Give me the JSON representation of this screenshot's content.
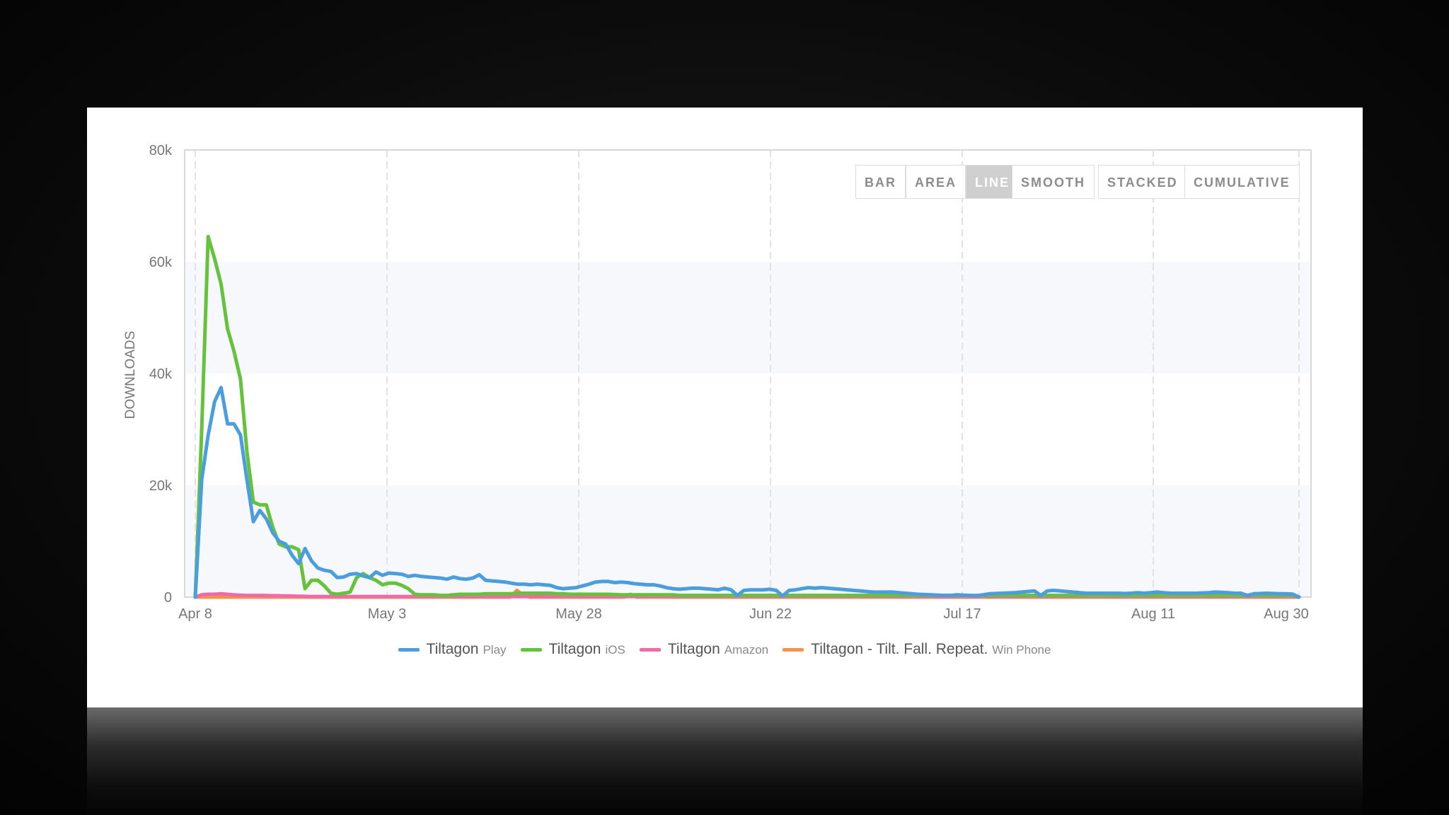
{
  "toolbar": {
    "buttons": [
      "BAR",
      "AREA",
      "LINE",
      "SMOOTH",
      "STACKED",
      "CUMULATIVE"
    ],
    "active": "LINE"
  },
  "chart_data": {
    "type": "line",
    "ylabel": "DOWNLOADS",
    "ylim": [
      0,
      80000
    ],
    "yticks": [
      "0",
      "20k",
      "40k",
      "60k",
      "80k"
    ],
    "xticks": [
      "Apr 8",
      "May 3",
      "May 28",
      "Jun 22",
      "Jul 17",
      "Aug 11",
      "Aug 30"
    ],
    "grid": "alternating horizontal bands, dashed vertical gridlines",
    "legend_position": "bottom",
    "x_start": "Apr 8",
    "x_end": "Aug 30",
    "series": [
      {
        "name": "Tiltagon",
        "platform": "Play",
        "color": "#4a9ee0",
        "values": [
          0,
          21000,
          29000,
          35000,
          37500,
          31000,
          31000,
          29000,
          21000,
          13500,
          15500,
          14000,
          11500,
          10000,
          9500,
          7500,
          6000,
          8700,
          6500,
          5200,
          4800,
          4600,
          3500,
          3600,
          4100,
          4200,
          3800,
          3500,
          4500,
          3900,
          4300,
          4200,
          4100,
          3700,
          3900,
          3700,
          3600,
          3500,
          3400,
          3200,
          3600,
          3300,
          3200,
          3400,
          4000,
          3000,
          2900,
          2800,
          2700,
          2500,
          2300,
          2300,
          2200,
          2300,
          2200,
          2100,
          1700,
          1500,
          1600,
          1700,
          2000,
          2300,
          2700,
          2800,
          2800,
          2600,
          2700,
          2600,
          2400,
          2300,
          2200,
          2200,
          2000,
          1700,
          1500,
          1400,
          1500,
          1600,
          1600,
          1500,
          1400,
          1300,
          1600,
          1300,
          300,
          1200,
          1300,
          1300,
          1300,
          1400,
          1200,
          200,
          1200,
          1300,
          1500,
          1700,
          1600,
          1700,
          1600,
          1500,
          1400,
          1300,
          1200,
          1100,
          1000,
          900,
          900,
          900,
          900,
          800,
          700,
          600,
          500,
          450,
          400,
          350,
          300,
          300,
          400,
          350,
          300,
          250,
          400,
          600,
          650,
          700,
          750,
          800,
          900,
          1000,
          1100,
          300,
          1100,
          1200,
          1100,
          1000,
          900,
          800,
          700,
          700,
          700,
          700,
          700,
          700,
          650,
          700,
          800,
          700,
          800,
          900,
          800,
          700,
          700,
          700,
          700,
          700,
          750,
          800,
          900,
          850,
          800,
          700,
          700,
          300,
          600,
          650,
          700,
          650,
          600,
          600,
          550,
          0
        ]
      },
      {
        "name": "Tiltagon",
        "platform": "iOS",
        "color": "#65c23b",
        "values": [
          0,
          30000,
          64500,
          60500,
          56000,
          48000,
          44000,
          39000,
          26000,
          17000,
          16500,
          16500,
          12500,
          9500,
          9000,
          9000,
          8500,
          1500,
          3000,
          3000,
          2000,
          700,
          500,
          700,
          900,
          3500,
          4200,
          3500,
          3000,
          2200,
          2500,
          2500,
          2100,
          1500,
          500,
          400,
          400,
          400,
          300,
          300,
          400,
          500,
          500,
          500,
          500,
          600,
          600,
          600,
          600,
          600,
          700,
          700,
          700,
          700,
          700,
          700,
          600,
          600,
          500,
          500,
          500,
          500,
          500,
          500,
          500,
          450,
          400,
          400,
          400,
          400,
          400,
          400,
          400,
          400,
          400,
          300,
          300,
          300,
          300,
          300,
          300,
          300,
          300,
          300,
          300,
          300,
          300,
          300,
          300,
          300,
          300,
          300,
          300,
          300,
          300,
          300,
          300,
          300,
          300,
          300,
          300,
          300,
          300,
          300,
          300,
          300,
          300,
          300,
          300,
          300,
          300,
          300,
          300,
          300,
          300,
          300,
          300,
          300,
          300,
          300,
          300,
          300,
          300,
          300,
          300,
          300,
          300,
          300,
          300,
          300,
          300,
          300,
          300,
          300,
          300,
          300,
          300,
          300,
          300,
          300,
          300,
          300,
          300,
          300,
          300,
          300,
          300,
          300,
          300,
          300,
          300,
          300,
          300,
          300,
          300,
          300,
          300,
          300,
          300,
          300,
          300,
          300,
          300,
          300,
          300,
          300,
          300,
          300,
          300,
          300,
          300,
          0
        ]
      },
      {
        "name": "Tiltagon",
        "platform": "Amazon",
        "color": "#f06aa8",
        "values": [
          0,
          400,
          500,
          500,
          600,
          500,
          400,
          350,
          300,
          300,
          300,
          300,
          250,
          250,
          200,
          200,
          150,
          150,
          100,
          100,
          100,
          100,
          100,
          100,
          100,
          100,
          100,
          100,
          100,
          100,
          100,
          100,
          100,
          100,
          100,
          100,
          100,
          100,
          100,
          100,
          100,
          100,
          100,
          100,
          100,
          100,
          100,
          100,
          100,
          100,
          100,
          100,
          100,
          100,
          100,
          100,
          100,
          100,
          100,
          100,
          100,
          100,
          100,
          100,
          100,
          100,
          100,
          100,
          100,
          100,
          100,
          100,
          100,
          100,
          100,
          100,
          100,
          100,
          100,
          100,
          100,
          100,
          100,
          100,
          100,
          100,
          100,
          100,
          100,
          100,
          100,
          100,
          100,
          100,
          100,
          100,
          100,
          100,
          100,
          100,
          100,
          100,
          100,
          100,
          100,
          100,
          100,
          100,
          100,
          100,
          100,
          100,
          100,
          100,
          100,
          100,
          100,
          100,
          100,
          100,
          100,
          100,
          100,
          100,
          100,
          100,
          100,
          100,
          100,
          100,
          100,
          100,
          100,
          100,
          100,
          100,
          100,
          100,
          100,
          100,
          100,
          100,
          100,
          100,
          100,
          100,
          100,
          100,
          100,
          100,
          100,
          100,
          100,
          100,
          100,
          100,
          100,
          100,
          100,
          100,
          100,
          100,
          100,
          100,
          100,
          100,
          100,
          100,
          100,
          100,
          100,
          100,
          100,
          100,
          0
        ]
      },
      {
        "name": "Tiltagon - Tilt. Fall. Repeat.",
        "platform": "Win Phone",
        "color": "#f4934a",
        "values": [
          0,
          0,
          0,
          0,
          0,
          0,
          0,
          0,
          0,
          0,
          0,
          0,
          0,
          0,
          0,
          0,
          0,
          0,
          0,
          0,
          0,
          0,
          0,
          0,
          0,
          0,
          0,
          0,
          0,
          0,
          0,
          0,
          0,
          0,
          0,
          0,
          0,
          0,
          0,
          0,
          0,
          0,
          0,
          0,
          0,
          0,
          0,
          0,
          0,
          0,
          0,
          1200,
          300,
          0,
          0,
          0,
          0,
          0,
          0,
          0,
          0,
          0,
          0,
          0,
          0,
          0,
          0,
          0,
          0,
          500,
          0,
          0,
          0,
          0,
          0,
          0,
          0,
          0,
          0,
          0,
          0,
          0,
          0,
          0,
          0,
          0,
          0,
          0,
          0,
          0,
          0,
          0,
          0,
          0,
          0,
          0,
          0,
          0,
          0,
          0,
          0,
          0,
          0,
          0,
          0,
          0,
          0,
          0,
          0,
          0,
          0,
          0,
          0,
          0,
          0,
          0,
          0,
          0,
          0,
          0,
          0,
          0,
          0,
          0,
          0,
          0,
          0,
          0,
          0,
          0,
          0,
          0,
          0,
          0,
          0,
          0,
          0,
          0,
          0,
          0,
          0,
          0,
          0,
          0,
          0,
          0,
          0,
          0,
          0,
          0,
          0,
          0,
          0,
          0,
          0,
          0,
          0,
          0,
          0,
          0,
          0,
          0,
          0,
          0,
          0,
          0,
          0,
          0,
          0,
          0,
          0,
          0,
          0,
          0,
          0,
          0
        ]
      }
    ]
  }
}
